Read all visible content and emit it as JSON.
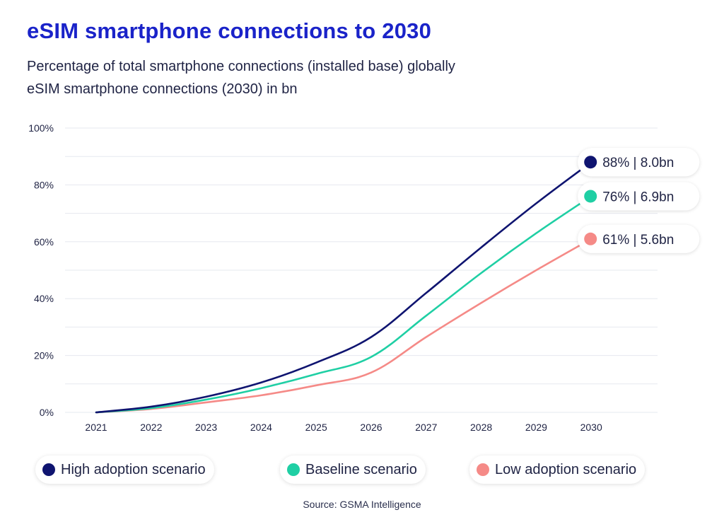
{
  "title": "eSIM smartphone connections to 2030",
  "subtitle_line1": "Percentage of total smartphone connections (installed base) globally",
  "subtitle_line2": "eSIM smartphone connections (2030) in bn",
  "source": "Source: GSMA Intelligence",
  "colors": {
    "high": "#0f1470",
    "baseline": "#1fcfa4",
    "low": "#f58a87",
    "grid": "#e6e8ef",
    "text": "#1f2344"
  },
  "chart_data": {
    "type": "line",
    "x": [
      "2021",
      "2022",
      "2023",
      "2024",
      "2025",
      "2026",
      "2027",
      "2028",
      "2029",
      "2030"
    ],
    "ylim": [
      0,
      100
    ],
    "yticks": [
      "0%",
      "20%",
      "40%",
      "60%",
      "80%",
      "100%"
    ],
    "ytick_values": [
      0,
      20,
      40,
      60,
      80,
      100
    ],
    "grid": true,
    "legend_position": "bottom",
    "series": [
      {
        "key": "high",
        "name": "High adoption scenario",
        "values": [
          0,
          2,
          5.5,
          10.5,
          17.5,
          26.5,
          42,
          58,
          73.5,
          88
        ],
        "end_label": "88% | 8.0bn"
      },
      {
        "key": "baseline",
        "name": "Baseline scenario",
        "values": [
          0,
          1.5,
          4.5,
          8.5,
          13.5,
          19.5,
          34,
          49,
          63,
          76
        ],
        "end_label": "76% | 6.9bn"
      },
      {
        "key": "low",
        "name": "Low adoption scenario",
        "values": [
          0,
          1.2,
          3.5,
          6,
          9.5,
          14,
          26.5,
          38.5,
          50,
          61
        ],
        "end_label": "61% | 5.6bn"
      }
    ]
  }
}
